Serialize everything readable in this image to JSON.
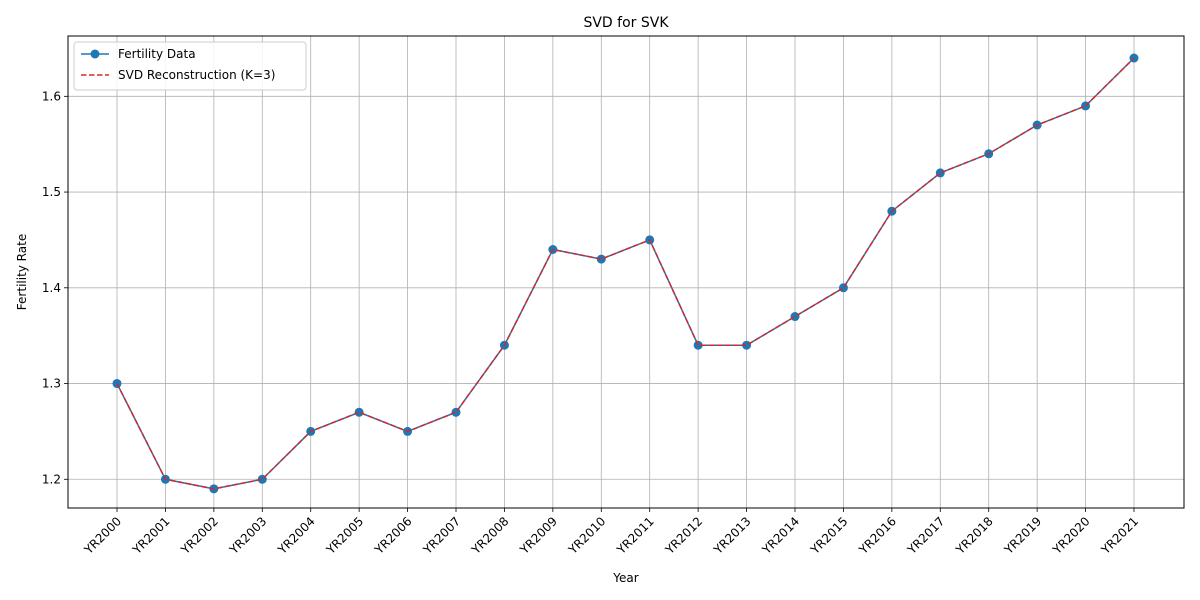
{
  "chart_data": {
    "type": "line",
    "title": "SVD for SVK",
    "xlabel": "Year",
    "ylabel": "Fertility Rate",
    "categories": [
      "YR2000",
      "YR2001",
      "YR2002",
      "YR2003",
      "YR2004",
      "YR2005",
      "YR2006",
      "YR2007",
      "YR2008",
      "YR2009",
      "YR2010",
      "YR2011",
      "YR2012",
      "YR2013",
      "YR2014",
      "YR2015",
      "YR2016",
      "YR2017",
      "YR2018",
      "YR2019",
      "YR2020",
      "YR2021"
    ],
    "ylim": [
      1.17,
      1.663
    ],
    "yticks": [
      "1.2",
      "1.3",
      "1.4",
      "1.5",
      "1.6"
    ],
    "grid": true,
    "legend_position": "top-left",
    "series": [
      {
        "name": "Fertility Data",
        "color": "#1f77b4",
        "style": "solid-with-circle-markers",
        "values": [
          1.3,
          1.2,
          1.19,
          1.2,
          1.25,
          1.27,
          1.25,
          1.27,
          1.34,
          1.44,
          1.43,
          1.45,
          1.34,
          1.34,
          1.37,
          1.4,
          1.48,
          1.52,
          1.54,
          1.57,
          1.59,
          1.64
        ]
      },
      {
        "name": "SVD Reconstruction (K=3)",
        "color": "#d62728",
        "style": "dashed",
        "values": [
          1.3,
          1.2,
          1.19,
          1.2,
          1.25,
          1.27,
          1.25,
          1.27,
          1.34,
          1.44,
          1.43,
          1.45,
          1.34,
          1.34,
          1.37,
          1.4,
          1.48,
          1.52,
          1.54,
          1.57,
          1.59,
          1.64
        ]
      }
    ]
  }
}
